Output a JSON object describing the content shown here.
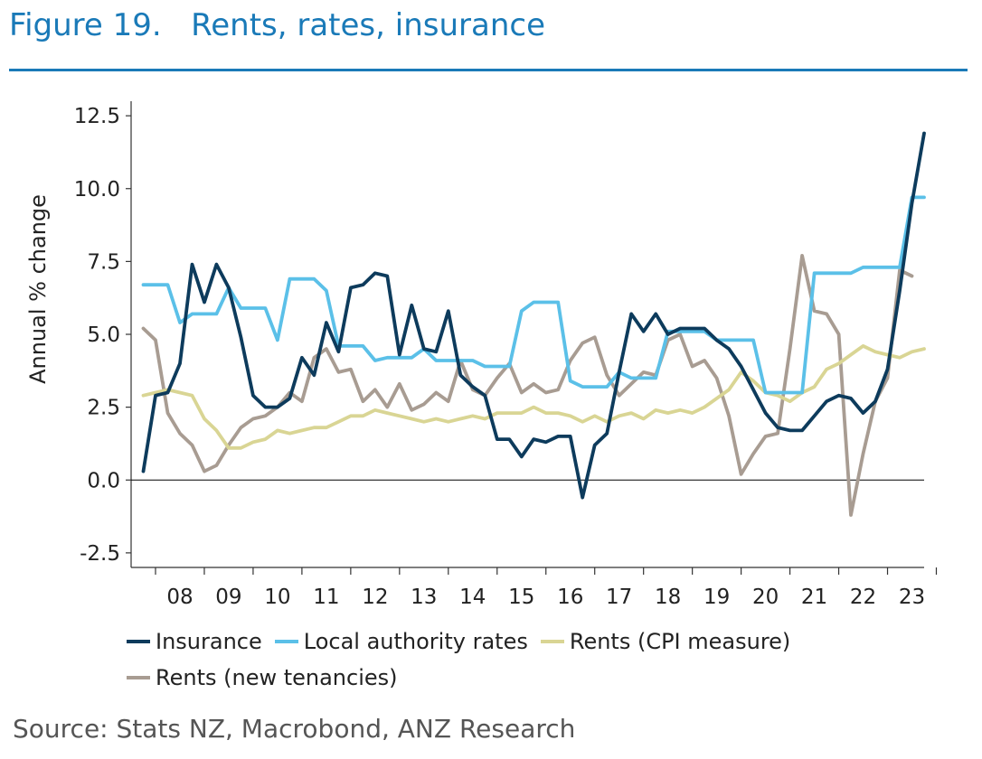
{
  "header": {
    "figure_label": "Figure 19.",
    "title": "Rents, rates, insurance"
  },
  "source": "Source: Stats NZ, Macrobond, ANZ Research",
  "chart_data": {
    "type": "line",
    "title": "Rents, rates, insurance",
    "xlabel": "",
    "ylabel": "Annual % change",
    "ylim": [
      -3.0,
      13.0
    ],
    "xlim": [
      2007.5,
      2023.75
    ],
    "yticks": [
      -2.5,
      0.0,
      2.5,
      5.0,
      7.5,
      10.0,
      12.5
    ],
    "ytick_labels": [
      "-2.5",
      "0.0",
      "2.5",
      "5.0",
      "7.5",
      "10.0",
      "12.5"
    ],
    "year_ticks": [
      2008,
      2009,
      2010,
      2011,
      2012,
      2013,
      2014,
      2015,
      2016,
      2017,
      2018,
      2019,
      2020,
      2021,
      2022,
      2023
    ],
    "xtick_labels": [
      "08",
      "09",
      "10",
      "11",
      "12",
      "13",
      "14",
      "15",
      "16",
      "17",
      "18",
      "19",
      "20",
      "21",
      "22",
      "23"
    ],
    "legend_position": "bottom",
    "series": [
      {
        "name": "Insurance",
        "color": "#0d3b5c",
        "points": [
          [
            2007.75,
            0.3
          ],
          [
            2008.0,
            2.9
          ],
          [
            2008.25,
            3.0
          ],
          [
            2008.5,
            4.0
          ],
          [
            2008.75,
            7.4
          ],
          [
            2009.0,
            6.1
          ],
          [
            2009.25,
            7.4
          ],
          [
            2009.5,
            6.6
          ],
          [
            2009.75,
            4.9
          ],
          [
            2010.0,
            2.9
          ],
          [
            2010.25,
            2.5
          ],
          [
            2010.5,
            2.5
          ],
          [
            2010.75,
            2.8
          ],
          [
            2011.0,
            4.2
          ],
          [
            2011.25,
            3.6
          ],
          [
            2011.5,
            5.4
          ],
          [
            2011.75,
            4.4
          ],
          [
            2012.0,
            6.6
          ],
          [
            2012.25,
            6.7
          ],
          [
            2012.5,
            7.1
          ],
          [
            2012.75,
            7.0
          ],
          [
            2013.0,
            4.3
          ],
          [
            2013.25,
            6.0
          ],
          [
            2013.5,
            4.5
          ],
          [
            2013.75,
            4.4
          ],
          [
            2014.0,
            5.8
          ],
          [
            2014.25,
            3.6
          ],
          [
            2014.5,
            3.2
          ],
          [
            2014.75,
            2.9
          ],
          [
            2015.0,
            1.4
          ],
          [
            2015.25,
            1.4
          ],
          [
            2015.5,
            0.8
          ],
          [
            2015.75,
            1.4
          ],
          [
            2016.0,
            1.3
          ],
          [
            2016.25,
            1.5
          ],
          [
            2016.5,
            1.5
          ],
          [
            2016.75,
            -0.6
          ],
          [
            2017.0,
            1.2
          ],
          [
            2017.25,
            1.6
          ],
          [
            2017.5,
            3.7
          ],
          [
            2017.75,
            5.7
          ],
          [
            2018.0,
            5.1
          ],
          [
            2018.25,
            5.7
          ],
          [
            2018.5,
            5.0
          ],
          [
            2018.75,
            5.2
          ],
          [
            2019.0,
            5.2
          ],
          [
            2019.25,
            5.2
          ],
          [
            2019.5,
            4.8
          ],
          [
            2019.75,
            4.5
          ],
          [
            2020.0,
            3.9
          ],
          [
            2020.25,
            3.1
          ],
          [
            2020.5,
            2.3
          ],
          [
            2020.75,
            1.8
          ],
          [
            2021.0,
            1.7
          ],
          [
            2021.25,
            1.7
          ],
          [
            2021.5,
            2.2
          ],
          [
            2021.75,
            2.7
          ],
          [
            2022.0,
            2.9
          ],
          [
            2022.25,
            2.8
          ],
          [
            2022.5,
            2.3
          ],
          [
            2022.75,
            2.7
          ],
          [
            2023.0,
            3.8
          ],
          [
            2023.25,
            6.5
          ],
          [
            2023.5,
            9.5
          ],
          [
            2023.75,
            11.9
          ]
        ]
      },
      {
        "name": "Local authority rates",
        "color": "#5bc0e8",
        "points": [
          [
            2007.75,
            6.7
          ],
          [
            2008.0,
            6.7
          ],
          [
            2008.25,
            6.7
          ],
          [
            2008.5,
            5.4
          ],
          [
            2008.75,
            5.7
          ],
          [
            2009.0,
            5.7
          ],
          [
            2009.25,
            5.7
          ],
          [
            2009.5,
            6.6
          ],
          [
            2009.75,
            5.9
          ],
          [
            2010.0,
            5.9
          ],
          [
            2010.25,
            5.9
          ],
          [
            2010.5,
            4.8
          ],
          [
            2010.75,
            6.9
          ],
          [
            2011.0,
            6.9
          ],
          [
            2011.25,
            6.9
          ],
          [
            2011.5,
            6.5
          ],
          [
            2011.75,
            4.6
          ],
          [
            2012.0,
            4.6
          ],
          [
            2012.25,
            4.6
          ],
          [
            2012.5,
            4.1
          ],
          [
            2012.75,
            4.2
          ],
          [
            2013.0,
            4.2
          ],
          [
            2013.25,
            4.2
          ],
          [
            2013.5,
            4.5
          ],
          [
            2013.75,
            4.1
          ],
          [
            2014.0,
            4.1
          ],
          [
            2014.25,
            4.1
          ],
          [
            2014.5,
            4.1
          ],
          [
            2014.75,
            3.9
          ],
          [
            2015.0,
            3.9
          ],
          [
            2015.25,
            3.9
          ],
          [
            2015.5,
            5.8
          ],
          [
            2015.75,
            6.1
          ],
          [
            2016.0,
            6.1
          ],
          [
            2016.25,
            6.1
          ],
          [
            2016.5,
            3.4
          ],
          [
            2016.75,
            3.2
          ],
          [
            2017.0,
            3.2
          ],
          [
            2017.25,
            3.2
          ],
          [
            2017.5,
            3.7
          ],
          [
            2017.75,
            3.5
          ],
          [
            2018.0,
            3.5
          ],
          [
            2018.25,
            3.5
          ],
          [
            2018.5,
            5.1
          ],
          [
            2018.75,
            5.1
          ],
          [
            2019.0,
            5.1
          ],
          [
            2019.25,
            5.1
          ],
          [
            2019.5,
            4.8
          ],
          [
            2019.75,
            4.8
          ],
          [
            2020.0,
            4.8
          ],
          [
            2020.25,
            4.8
          ],
          [
            2020.5,
            3.0
          ],
          [
            2020.75,
            3.0
          ],
          [
            2021.0,
            3.0
          ],
          [
            2021.25,
            3.0
          ],
          [
            2021.5,
            7.1
          ],
          [
            2021.75,
            7.1
          ],
          [
            2022.0,
            7.1
          ],
          [
            2022.25,
            7.1
          ],
          [
            2022.5,
            7.3
          ],
          [
            2022.75,
            7.3
          ],
          [
            2023.0,
            7.3
          ],
          [
            2023.25,
            7.3
          ],
          [
            2023.5,
            9.7
          ],
          [
            2023.75,
            9.7
          ]
        ]
      },
      {
        "name": "Rents (CPI measure)",
        "color": "#d9d594",
        "points": [
          [
            2007.75,
            2.9
          ],
          [
            2008.0,
            3.0
          ],
          [
            2008.25,
            3.1
          ],
          [
            2008.5,
            3.0
          ],
          [
            2008.75,
            2.9
          ],
          [
            2009.0,
            2.1
          ],
          [
            2009.25,
            1.7
          ],
          [
            2009.5,
            1.1
          ],
          [
            2009.75,
            1.1
          ],
          [
            2010.0,
            1.3
          ],
          [
            2010.25,
            1.4
          ],
          [
            2010.5,
            1.7
          ],
          [
            2010.75,
            1.6
          ],
          [
            2011.0,
            1.7
          ],
          [
            2011.25,
            1.8
          ],
          [
            2011.5,
            1.8
          ],
          [
            2011.75,
            2.0
          ],
          [
            2012.0,
            2.2
          ],
          [
            2012.25,
            2.2
          ],
          [
            2012.5,
            2.4
          ],
          [
            2012.75,
            2.3
          ],
          [
            2013.0,
            2.2
          ],
          [
            2013.25,
            2.1
          ],
          [
            2013.5,
            2.0
          ],
          [
            2013.75,
            2.1
          ],
          [
            2014.0,
            2.0
          ],
          [
            2014.25,
            2.1
          ],
          [
            2014.5,
            2.2
          ],
          [
            2014.75,
            2.1
          ],
          [
            2015.0,
            2.3
          ],
          [
            2015.25,
            2.3
          ],
          [
            2015.5,
            2.3
          ],
          [
            2015.75,
            2.5
          ],
          [
            2016.0,
            2.3
          ],
          [
            2016.25,
            2.3
          ],
          [
            2016.5,
            2.2
          ],
          [
            2016.75,
            2.0
          ],
          [
            2017.0,
            2.2
          ],
          [
            2017.25,
            2.0
          ],
          [
            2017.5,
            2.2
          ],
          [
            2017.75,
            2.3
          ],
          [
            2018.0,
            2.1
          ],
          [
            2018.25,
            2.4
          ],
          [
            2018.5,
            2.3
          ],
          [
            2018.75,
            2.4
          ],
          [
            2019.0,
            2.3
          ],
          [
            2019.25,
            2.5
          ],
          [
            2019.5,
            2.8
          ],
          [
            2019.75,
            3.1
          ],
          [
            2020.0,
            3.7
          ],
          [
            2020.25,
            3.4
          ],
          [
            2020.5,
            3.0
          ],
          [
            2020.75,
            2.9
          ],
          [
            2021.0,
            2.7
          ],
          [
            2021.25,
            3.0
          ],
          [
            2021.5,
            3.2
          ],
          [
            2021.75,
            3.8
          ],
          [
            2022.0,
            4.0
          ],
          [
            2022.25,
            4.3
          ],
          [
            2022.5,
            4.6
          ],
          [
            2022.75,
            4.4
          ],
          [
            2023.0,
            4.3
          ],
          [
            2023.25,
            4.2
          ],
          [
            2023.5,
            4.4
          ],
          [
            2023.75,
            4.5
          ]
        ]
      },
      {
        "name": "Rents (new tenancies)",
        "color": "#a89c92",
        "points": [
          [
            2007.75,
            5.2
          ],
          [
            2008.0,
            4.8
          ],
          [
            2008.25,
            2.3
          ],
          [
            2008.5,
            1.6
          ],
          [
            2008.75,
            1.2
          ],
          [
            2009.0,
            0.3
          ],
          [
            2009.25,
            0.5
          ],
          [
            2009.5,
            1.2
          ],
          [
            2009.75,
            1.8
          ],
          [
            2010.0,
            2.1
          ],
          [
            2010.25,
            2.2
          ],
          [
            2010.5,
            2.5
          ],
          [
            2010.75,
            3.0
          ],
          [
            2011.0,
            2.7
          ],
          [
            2011.25,
            4.2
          ],
          [
            2011.5,
            4.5
          ],
          [
            2011.75,
            3.7
          ],
          [
            2012.0,
            3.8
          ],
          [
            2012.25,
            2.7
          ],
          [
            2012.5,
            3.1
          ],
          [
            2012.75,
            2.5
          ],
          [
            2013.0,
            3.3
          ],
          [
            2013.25,
            2.4
          ],
          [
            2013.5,
            2.6
          ],
          [
            2013.75,
            3.0
          ],
          [
            2014.0,
            2.7
          ],
          [
            2014.25,
            4.1
          ],
          [
            2014.5,
            3.1
          ],
          [
            2014.75,
            2.9
          ],
          [
            2015.0,
            3.5
          ],
          [
            2015.25,
            4.0
          ],
          [
            2015.5,
            3.0
          ],
          [
            2015.75,
            3.3
          ],
          [
            2016.0,
            3.0
          ],
          [
            2016.25,
            3.1
          ],
          [
            2016.5,
            4.1
          ],
          [
            2016.75,
            4.7
          ],
          [
            2017.0,
            4.9
          ],
          [
            2017.25,
            3.6
          ],
          [
            2017.5,
            2.9
          ],
          [
            2017.75,
            3.3
          ],
          [
            2018.0,
            3.7
          ],
          [
            2018.25,
            3.6
          ],
          [
            2018.5,
            4.8
          ],
          [
            2018.75,
            5.0
          ],
          [
            2019.0,
            3.9
          ],
          [
            2019.25,
            4.1
          ],
          [
            2019.5,
            3.5
          ],
          [
            2019.75,
            2.2
          ],
          [
            2020.0,
            0.2
          ],
          [
            2020.25,
            0.9
          ],
          [
            2020.5,
            1.5
          ],
          [
            2020.75,
            1.6
          ],
          [
            2021.0,
            4.5
          ],
          [
            2021.25,
            7.7
          ],
          [
            2021.5,
            5.8
          ],
          [
            2021.75,
            5.7
          ],
          [
            2022.0,
            5.0
          ],
          [
            2022.25,
            -1.2
          ],
          [
            2022.5,
            0.9
          ],
          [
            2022.75,
            2.7
          ],
          [
            2023.0,
            3.5
          ],
          [
            2023.25,
            7.2
          ],
          [
            2023.5,
            7.0
          ]
        ]
      }
    ]
  }
}
